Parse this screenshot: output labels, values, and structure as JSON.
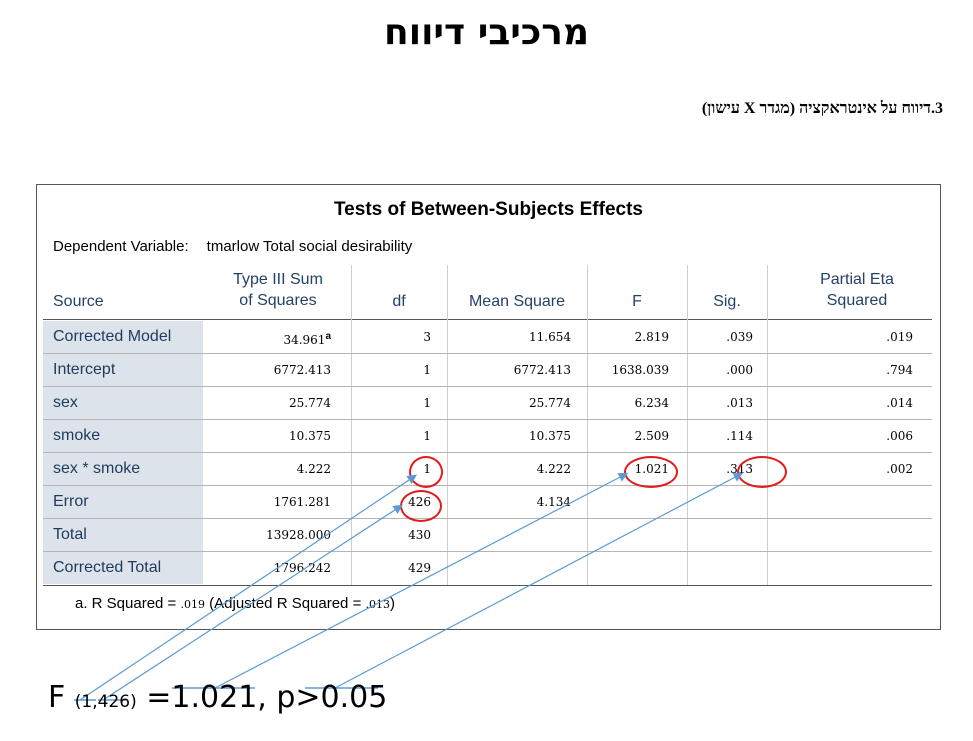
{
  "slide": {
    "title": "מרכיבי דיווח",
    "subtitle": "3.דיווח על אינטראקציה (מגדר X עישון)"
  },
  "table": {
    "title": "Tests of Between-Subjects Effects",
    "dependent_label": "Dependent Variable:",
    "dependent_value": "tmarlow Total social desirability",
    "headers": {
      "source": "Source",
      "ss_line1": "Type III Sum",
      "ss_line2": "of Squares",
      "df": "df",
      "ms": "Mean Square",
      "f": "F",
      "sig": "Sig.",
      "eta_line1": "Partial Eta",
      "eta_line2": "Squared"
    },
    "rows": [
      {
        "source": "Corrected Model",
        "ss": "34.961",
        "ss_sup": "a",
        "df": "3",
        "ms": "11.654",
        "f": "2.819",
        "sig": ".039",
        "eta": ".019"
      },
      {
        "source": "Intercept",
        "ss": "6772.413",
        "df": "1",
        "ms": "6772.413",
        "f": "1638.039",
        "sig": ".000",
        "eta": ".794"
      },
      {
        "source": "sex",
        "ss": "25.774",
        "df": "1",
        "ms": "25.774",
        "f": "6.234",
        "sig": ".013",
        "eta": ".014"
      },
      {
        "source": "smoke",
        "ss": "10.375",
        "df": "1",
        "ms": "10.375",
        "f": "2.509",
        "sig": ".114",
        "eta": ".006"
      },
      {
        "source": "sex * smoke",
        "ss": "4.222",
        "df": "1",
        "ms": "4.222",
        "f": "1.021",
        "sig": ".313",
        "eta": ".002"
      },
      {
        "source": "Error",
        "ss": "1761.281",
        "df": "426",
        "ms": "4.134",
        "f": "",
        "sig": "",
        "eta": ""
      },
      {
        "source": "Total",
        "ss": "13928.000",
        "df": "430",
        "ms": "",
        "f": "",
        "sig": "",
        "eta": ""
      },
      {
        "source": "Corrected Total",
        "ss": "1796.242",
        "df": "429",
        "ms": "",
        "f": "",
        "sig": "",
        "eta": ""
      }
    ],
    "footnote_prefix": "a. R Squared = ",
    "footnote_r2": ".019",
    "footnote_mid": " (Adjusted R Squared = ",
    "footnote_adj": ".013",
    "footnote_suffix": ")"
  },
  "formula": {
    "f_label": "F ",
    "df_sub": "(1,426)",
    "rest": " =1.021, p>0.05"
  },
  "colors": {
    "highlight_ring": "#e31b1b",
    "arrow": "#5b9bd5",
    "row_label_bg": "#dde3ea"
  }
}
